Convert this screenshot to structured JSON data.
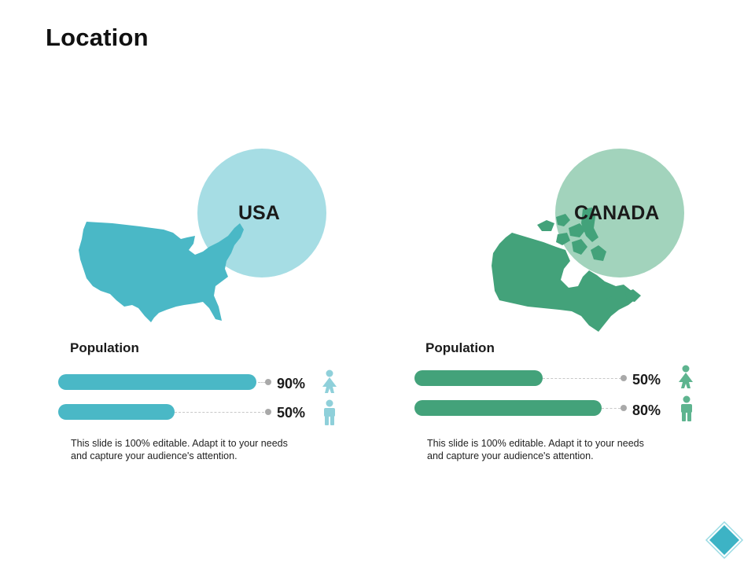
{
  "slide": {
    "title": "Location"
  },
  "colors": {
    "usa_map": "#4ab8c6",
    "usa_circle": "#a6dde4",
    "usa_bar": "#4ab8c6",
    "usa_person": "#8fd0da",
    "canada_map": "#43a27a",
    "canada_circle": "#a2d3bc",
    "canada_bar": "#43a27a",
    "canada_person": "#5eb48f",
    "nav_diamond": "#3db3c5"
  },
  "countries": [
    {
      "name": "USA",
      "population_title": "Population",
      "bars": [
        {
          "label": "90%",
          "value": 0.9,
          "icon": "female-person-icon"
        },
        {
          "label": "50%",
          "value": 0.5,
          "icon": "male-person-icon"
        }
      ],
      "description": "This slide is 100% editable. Adapt it to your needs and capture your audience's attention."
    },
    {
      "name": "CANADA",
      "population_title": "Population",
      "bars": [
        {
          "label": "50%",
          "value": 0.5,
          "icon": "female-person-icon"
        },
        {
          "label": "80%",
          "value": 0.8,
          "icon": "male-person-icon"
        }
      ],
      "description": "This slide is 100% editable. Adapt it to your needs and capture your audience's attention."
    }
  ],
  "icons": {
    "nav": "diamond-nav-icon"
  }
}
